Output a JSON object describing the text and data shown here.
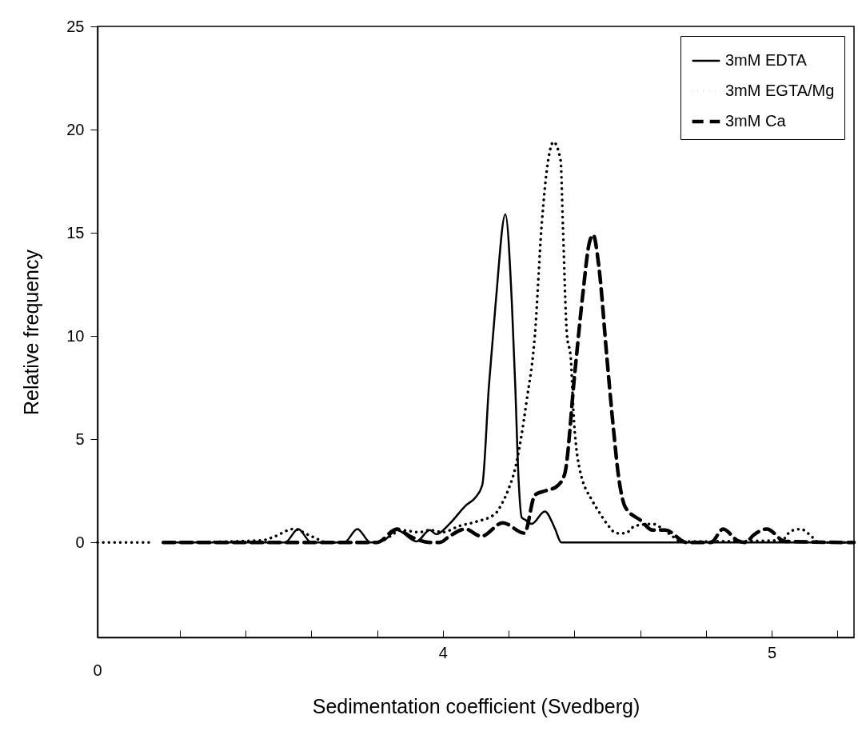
{
  "chart_data": {
    "type": "line",
    "xlabel": "Sedimentation coefficient (Svedberg)",
    "ylabel": "Relative frequency",
    "xlim": [
      2.95,
      5.25
    ],
    "xticks": [
      {
        "value": 3.2,
        "label": null
      },
      {
        "value": 3.4,
        "label": null
      },
      {
        "value": 3.6,
        "label": null
      },
      {
        "value": 3.8,
        "label": null
      },
      4,
      {
        "value": 4.2,
        "label": null
      },
      {
        "value": 4.4,
        "label": null
      },
      {
        "value": 4.6,
        "label": null
      },
      {
        "value": 4.8,
        "label": null
      },
      5,
      {
        "value": 5.2,
        "label": null
      }
    ],
    "ylim": [
      -4.6,
      25
    ],
    "yticks": [
      0,
      5,
      10,
      15,
      20,
      25
    ],
    "grid": false,
    "legend": "top right",
    "marker": "none",
    "annotations": [
      "0"
    ],
    "series": [
      {
        "name": "3mM EDTA",
        "color": "#000000",
        "line_style": "solid",
        "x": [
          3.15,
          3.52,
          3.56,
          3.6,
          3.7,
          3.74,
          3.78,
          3.82,
          3.86,
          3.92,
          3.96,
          3.98,
          4.02,
          4.07,
          4.1,
          4.12,
          4.14,
          4.16,
          4.19,
          4.21,
          4.22,
          4.23,
          4.24,
          4.25,
          4.27,
          4.31,
          4.34,
          4.36,
          5.25
        ],
        "values": [
          0,
          0,
          0.65,
          0,
          0,
          0.65,
          0,
          0.1,
          0.6,
          0.05,
          0.6,
          0.4,
          0.9,
          1.8,
          2.2,
          2.8,
          7.6,
          11.5,
          15.9,
          11.5,
          7.6,
          3.1,
          1.2,
          1.1,
          0.9,
          1.5,
          0.7,
          0,
          0
        ]
      },
      {
        "name": "3mM EGTA/Mg",
        "color": "#000000",
        "line_style": "dotted",
        "x": [
          2.95,
          3.11,
          3.13,
          3.15,
          3.45,
          3.49,
          3.545,
          3.6,
          3.65,
          3.79,
          3.84,
          3.87,
          3.93,
          3.96,
          4.0,
          4.05,
          4.1,
          4.16,
          4.18,
          4.2,
          4.22,
          4.255,
          4.28,
          4.3,
          4.32,
          4.336,
          4.358,
          4.365,
          4.377,
          4.389,
          4.397,
          4.414,
          4.455,
          4.474,
          4.499,
          4.528,
          4.555,
          4.584,
          4.637,
          4.669,
          4.698,
          4.725,
          5.03,
          5.058,
          5.088,
          5.114,
          5.144,
          5.25
        ],
        "values": [
          0,
          0,
          null,
          0,
          0.1,
          0.3,
          0.65,
          0.3,
          0,
          0,
          0.3,
          0.6,
          0.5,
          0.6,
          0.5,
          0.8,
          1.0,
          1.4,
          1.9,
          2.6,
          3.6,
          6.9,
          10.1,
          15.3,
          18.5,
          19.4,
          18.5,
          15.3,
          10.1,
          8.9,
          6.3,
          3.7,
          2.0,
          1.5,
          0.9,
          0.45,
          0.45,
          0.8,
          0.9,
          0.65,
          0.3,
          0.05,
          0.1,
          0.55,
          0.65,
          0.4,
          0,
          0
        ]
      },
      {
        "name": "3mM Ca",
        "color": "#000000",
        "line_style": "dashed",
        "x": [
          3.15,
          3.8,
          3.86,
          3.9,
          3.96,
          3.99,
          4.02,
          4.068,
          4.117,
          4.182,
          4.248,
          4.28,
          4.311,
          4.345,
          4.37,
          4.401,
          4.426,
          4.445,
          4.457,
          4.474,
          4.499,
          4.518,
          4.535,
          4.555,
          4.603,
          4.637,
          4.676,
          4.742,
          4.815,
          4.852,
          4.895,
          4.92,
          4.944,
          4.985,
          5.041,
          5.25
        ],
        "values": [
          0,
          0,
          0.65,
          0.3,
          0,
          0,
          0.3,
          0.65,
          0.3,
          0.95,
          0.45,
          2.3,
          2.5,
          2.7,
          3.3,
          8.2,
          12.1,
          14.5,
          14.9,
          13.4,
          8.9,
          5.6,
          3.1,
          1.7,
          1.05,
          0.6,
          0.6,
          0,
          0,
          0.65,
          0.1,
          0,
          0.35,
          0.65,
          0.05,
          0
        ]
      }
    ]
  }
}
